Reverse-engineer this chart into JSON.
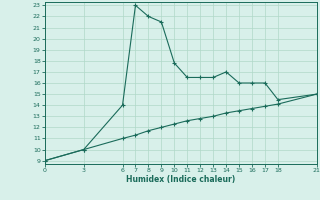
{
  "xlabel": "Humidex (Indice chaleur)",
  "line1_x": [
    0,
    3,
    6,
    7,
    8,
    9,
    10,
    11,
    12,
    13,
    14,
    15,
    16,
    17,
    18,
    21
  ],
  "line1_y": [
    9,
    10,
    14,
    23,
    22,
    21.5,
    17.8,
    16.5,
    16.5,
    16.5,
    17,
    16,
    16,
    16,
    14.5,
    15
  ],
  "line2_x": [
    0,
    3,
    6,
    7,
    8,
    9,
    10,
    11,
    12,
    13,
    14,
    15,
    16,
    17,
    18,
    21
  ],
  "line2_y": [
    9,
    10,
    11.0,
    11.3,
    11.7,
    12.0,
    12.3,
    12.6,
    12.8,
    13.0,
    13.3,
    13.5,
    13.7,
    13.9,
    14.1,
    15.0
  ],
  "color": "#1a6b5a",
  "bg_color": "#d8f0ea",
  "grid_color": "#b0d8c8",
  "ylim_min": 9,
  "ylim_max": 23,
  "xlim_min": 0,
  "xlim_max": 21,
  "xticks": [
    0,
    3,
    6,
    7,
    8,
    9,
    10,
    11,
    12,
    13,
    14,
    15,
    16,
    17,
    18,
    21
  ],
  "yticks": [
    9,
    10,
    11,
    12,
    13,
    14,
    15,
    16,
    17,
    18,
    19,
    20,
    21,
    22,
    23
  ]
}
